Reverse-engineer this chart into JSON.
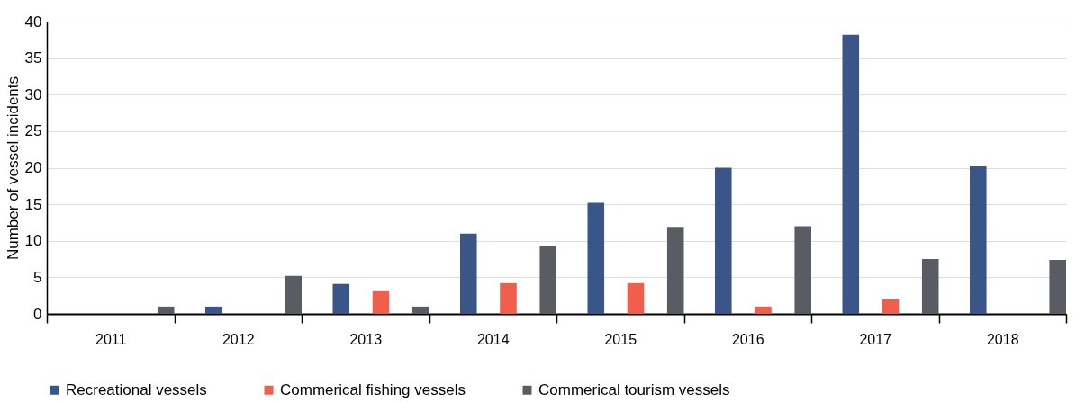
{
  "chart_data": {
    "type": "bar",
    "ylabel": "Number of vessel incidents",
    "categories": [
      "2011",
      "2012",
      "2013",
      "2014",
      "2015",
      "2016",
      "2017",
      "2018"
    ],
    "series": [
      {
        "name": "Recreational vessels",
        "color": "#3a5588",
        "values": [
          0,
          1,
          4.1,
          11,
          15.2,
          20,
          38.2,
          20.2
        ]
      },
      {
        "name": "Commerical fishing vessels",
        "color": "#ef5f4b",
        "values": [
          0,
          0,
          3.1,
          4.2,
          4.2,
          1,
          2,
          0
        ]
      },
      {
        "name": "Commerical tourism vessels",
        "color": "#5a5c64",
        "values": [
          1,
          5.2,
          1,
          9.3,
          11.9,
          12,
          7.5,
          7.4
        ]
      }
    ],
    "ylim": [
      0,
      40
    ],
    "yticks": [
      0,
      5,
      10,
      15,
      20,
      25,
      30,
      35,
      40
    ],
    "grid": "y",
    "legend": "bottom"
  }
}
